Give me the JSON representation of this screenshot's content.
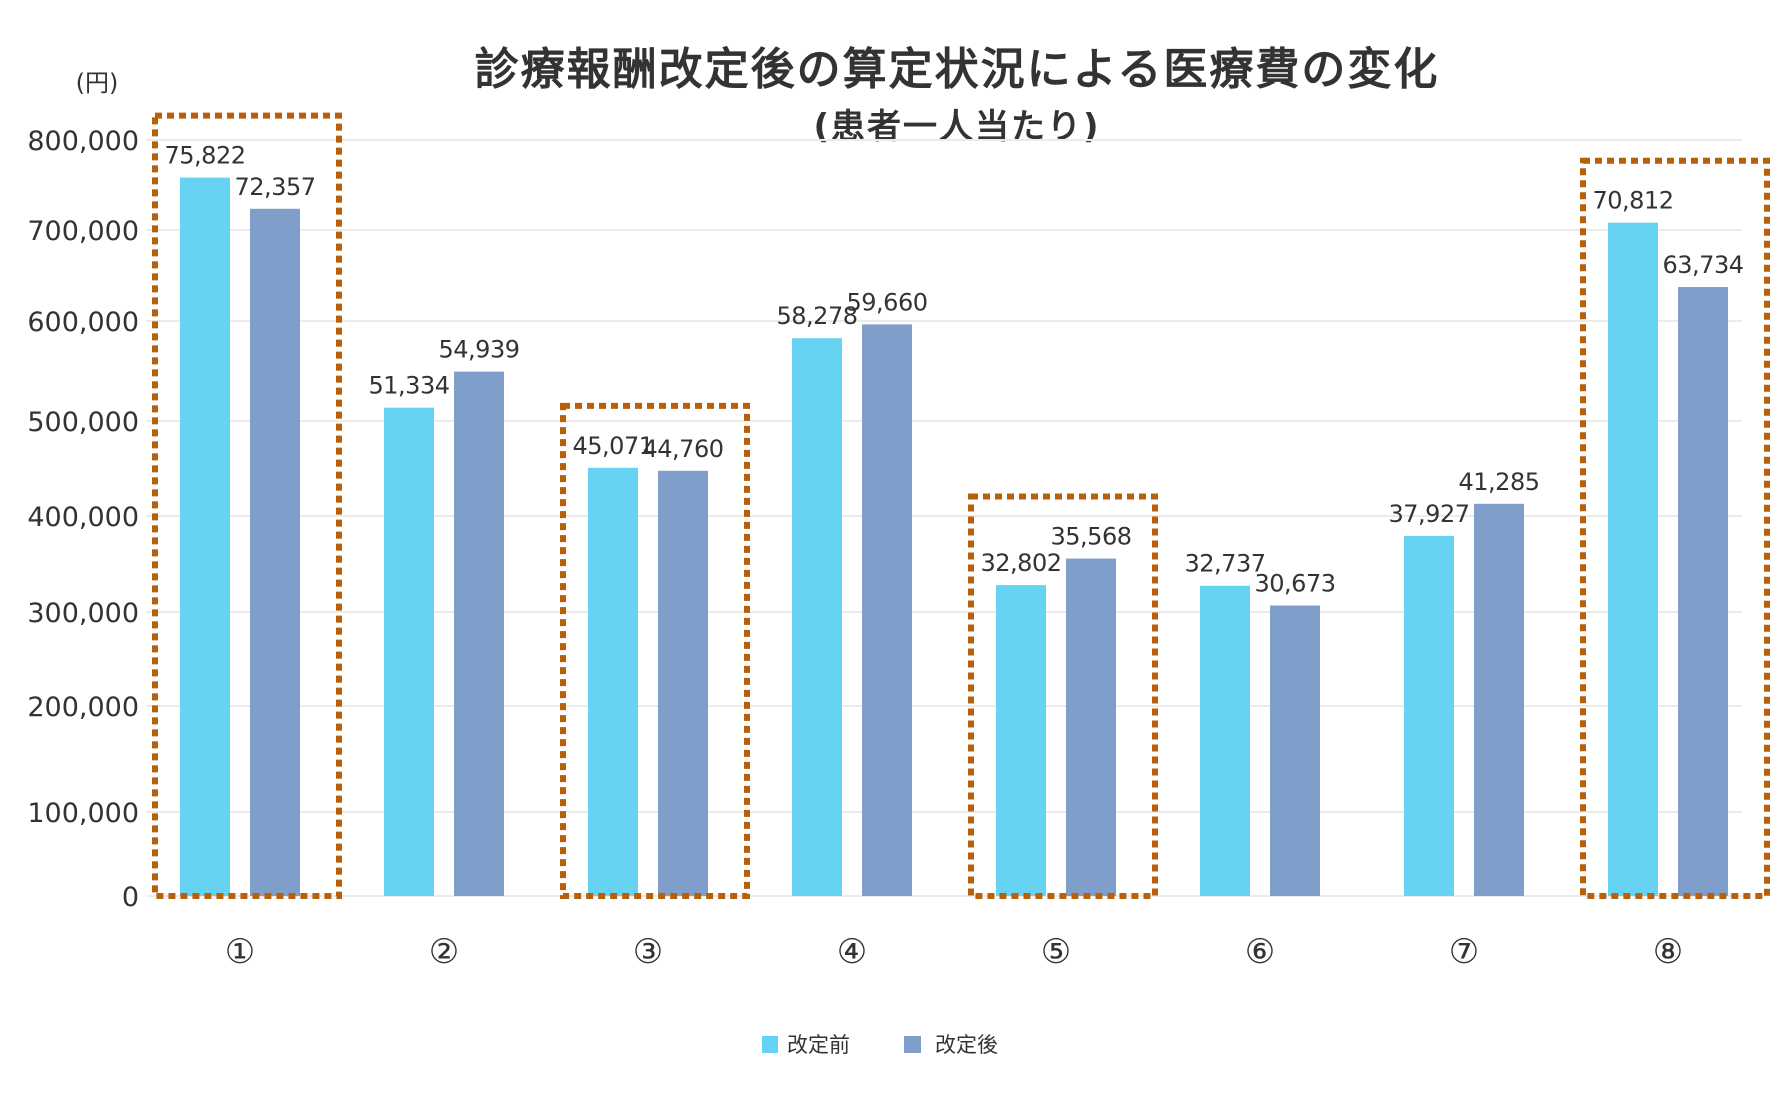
{
  "chart_data": {
    "type": "bar",
    "title": "診療報酬改定後の算定状況による医療費の変化",
    "subtitle": "(患者一人当たり)",
    "ylabel": "(円)",
    "xlabel": "",
    "categories": [
      "①",
      "②",
      "③",
      "④",
      "⑤",
      "⑥",
      "⑦",
      "⑧"
    ],
    "series": [
      {
        "name": "改定前",
        "color": "#66d3f3",
        "values": [
          75822,
          51334,
          45071,
          58278,
          32802,
          32737,
          37927,
          70812
        ],
        "labels": [
          "75,822",
          "51,334",
          "45,071",
          "58,278",
          "32,802",
          "32,737",
          "37,927",
          "70,812"
        ]
      },
      {
        "name": "改定後",
        "color": "#7f9fca",
        "values": [
          72357,
          54939,
          44760,
          59660,
          35568,
          30673,
          41285,
          63734
        ],
        "labels": [
          "72,357",
          "54,939",
          "44,760",
          "59,660",
          "35,568",
          "30,673",
          "41,285",
          "63,734"
        ]
      }
    ],
    "yticks": [
      "0",
      "100,000",
      "200,000",
      "300,000",
      "400,000",
      "500,000",
      "600,000",
      "700,000",
      "800,000"
    ],
    "ylim": [
      0,
      800000
    ],
    "grid": true,
    "legend": "bottom-center",
    "highlighted_categories": [
      "①",
      "③",
      "⑤",
      "⑧"
    ],
    "highlight_color": "#b85f0a"
  }
}
